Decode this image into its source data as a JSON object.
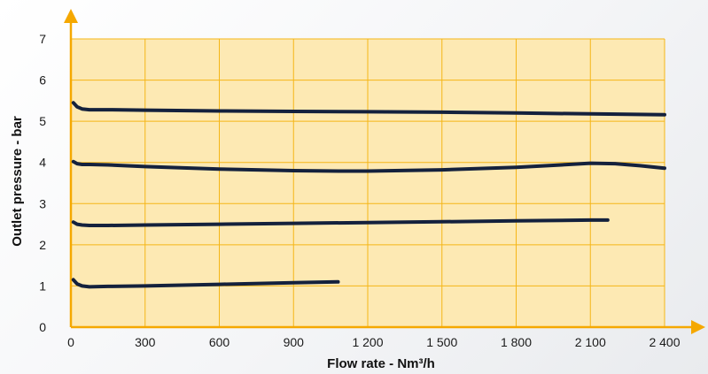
{
  "chart_data": {
    "type": "line",
    "xlabel": "Flow rate - Nm³/h",
    "ylabel": "Outlet pressure - bar",
    "xlim": [
      0,
      2400
    ],
    "ylim": [
      0,
      7
    ],
    "x_ticks": [
      {
        "value": 0,
        "label": "0"
      },
      {
        "value": 300,
        "label": "300"
      },
      {
        "value": 600,
        "label": "600"
      },
      {
        "value": 900,
        "label": "900"
      },
      {
        "value": 1200,
        "label": "1 200"
      },
      {
        "value": 1500,
        "label": "1 500"
      },
      {
        "value": 1800,
        "label": "1 800"
      },
      {
        "value": 2100,
        "label": "2 100"
      },
      {
        "value": 2400,
        "label": "2 400"
      }
    ],
    "y_ticks": [
      {
        "value": 0,
        "label": "0"
      },
      {
        "value": 1,
        "label": "1"
      },
      {
        "value": 2,
        "label": "2"
      },
      {
        "value": 3,
        "label": "3"
      },
      {
        "value": 4,
        "label": "4"
      },
      {
        "value": 5,
        "label": "5"
      },
      {
        "value": 6,
        "label": "6"
      },
      {
        "value": 7,
        "label": "7"
      }
    ],
    "grid": true,
    "colors": {
      "plot_bg": "#fde9b3",
      "grid": "#f5b617",
      "axis": "#f5a800",
      "line": "#14213d"
    },
    "series": [
      {
        "x": [
          10,
          25,
          45,
          75,
          150,
          300,
          600,
          900,
          1200,
          1500,
          1800,
          2100,
          2400
        ],
        "y": [
          5.45,
          5.35,
          5.3,
          5.28,
          5.28,
          5.27,
          5.25,
          5.24,
          5.23,
          5.22,
          5.2,
          5.18,
          5.16
        ]
      },
      {
        "x": [
          10,
          25,
          45,
          75,
          150,
          300,
          600,
          900,
          1100,
          1200,
          1500,
          1800,
          1950,
          2100,
          2200,
          2300,
          2400
        ],
        "y": [
          4.02,
          3.97,
          3.95,
          3.95,
          3.94,
          3.9,
          3.84,
          3.8,
          3.79,
          3.79,
          3.82,
          3.88,
          3.93,
          3.98,
          3.97,
          3.92,
          3.86
        ]
      },
      {
        "x": [
          10,
          25,
          45,
          75,
          150,
          300,
          600,
          900,
          1200,
          1500,
          1800,
          2100,
          2170
        ],
        "y": [
          2.55,
          2.5,
          2.48,
          2.47,
          2.47,
          2.48,
          2.5,
          2.52,
          2.54,
          2.56,
          2.58,
          2.6,
          2.6
        ]
      },
      {
        "x": [
          10,
          25,
          45,
          75,
          150,
          300,
          600,
          900,
          1080
        ],
        "y": [
          1.15,
          1.05,
          1.0,
          0.98,
          0.99,
          1.0,
          1.04,
          1.08,
          1.1
        ]
      }
    ]
  }
}
